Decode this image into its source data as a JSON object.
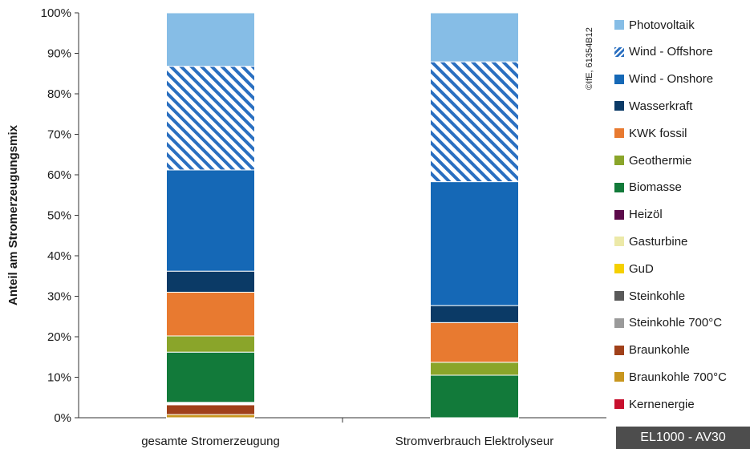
{
  "chart_data": {
    "type": "bar",
    "stacked": true,
    "ylabel": "Anteil am Stromerzeugungsmix",
    "ylim": [
      0,
      100
    ],
    "yticks": [
      "0%",
      "10%",
      "20%",
      "30%",
      "40%",
      "50%",
      "60%",
      "70%",
      "80%",
      "90%",
      "100%"
    ],
    "categories": [
      "gesamte Stromerzeugung",
      "Stromverbrauch Elektrolyseur"
    ],
    "series": [
      {
        "name": "Kernenergie",
        "color": "#c8102e",
        "values": [
          0,
          0
        ]
      },
      {
        "name": "Braunkohle 700°C",
        "color": "#c8961e",
        "values": [
          0.8,
          0
        ]
      },
      {
        "name": "Braunkohle",
        "color": "#a0401a",
        "values": [
          2.4,
          0
        ]
      },
      {
        "name": "Steinkohle 700°C",
        "color": "#9a9a9a",
        "values": [
          0.2,
          0
        ]
      },
      {
        "name": "Steinkohle",
        "color": "#595959",
        "values": [
          0.2,
          0
        ]
      },
      {
        "name": "GuD",
        "color": "#f5d000",
        "values": [
          0,
          0
        ]
      },
      {
        "name": "Gasturbine",
        "color": "#ece9a8",
        "values": [
          0.2,
          0
        ]
      },
      {
        "name": "Heizöl",
        "color": "#5c0a4a",
        "values": [
          0,
          0
        ]
      },
      {
        "name": "Biomasse",
        "color": "#127a3a",
        "values": [
          12.4,
          10.5
        ]
      },
      {
        "name": "Geothermie",
        "color": "#8aa52a",
        "values": [
          4,
          3.2
        ]
      },
      {
        "name": "KWK fossil",
        "color": "#e87a30",
        "values": [
          10.8,
          9.8
        ]
      },
      {
        "name": "Wasserkraft",
        "color": "#0b3a66",
        "values": [
          5.2,
          4.2
        ]
      },
      {
        "name": "Wind - Onshore",
        "color": "#1568b6",
        "values": [
          25,
          30.6
        ]
      },
      {
        "name": "Wind - Offshore",
        "color": "#2a6fc0",
        "pattern": "hatch",
        "values": [
          25.6,
          29.6
        ]
      },
      {
        "name": "Photovoltaik",
        "color": "#86bde6",
        "values": [
          13.2,
          12.1
        ]
      }
    ],
    "legend_order": [
      "Photovoltaik",
      "Wind - Offshore",
      "Wind - Onshore",
      "Wasserkraft",
      "KWK fossil",
      "Geothermie",
      "Biomasse",
      "Heizöl",
      "Gasturbine",
      "GuD",
      "Steinkohle",
      "Steinkohle 700°C",
      "Braunkohle",
      "Braunkohle 700°C",
      "Kernenergie"
    ],
    "legend_position": "right"
  },
  "copyright": "©IfE, 61354B12",
  "badge": "EL1000 - AV30"
}
